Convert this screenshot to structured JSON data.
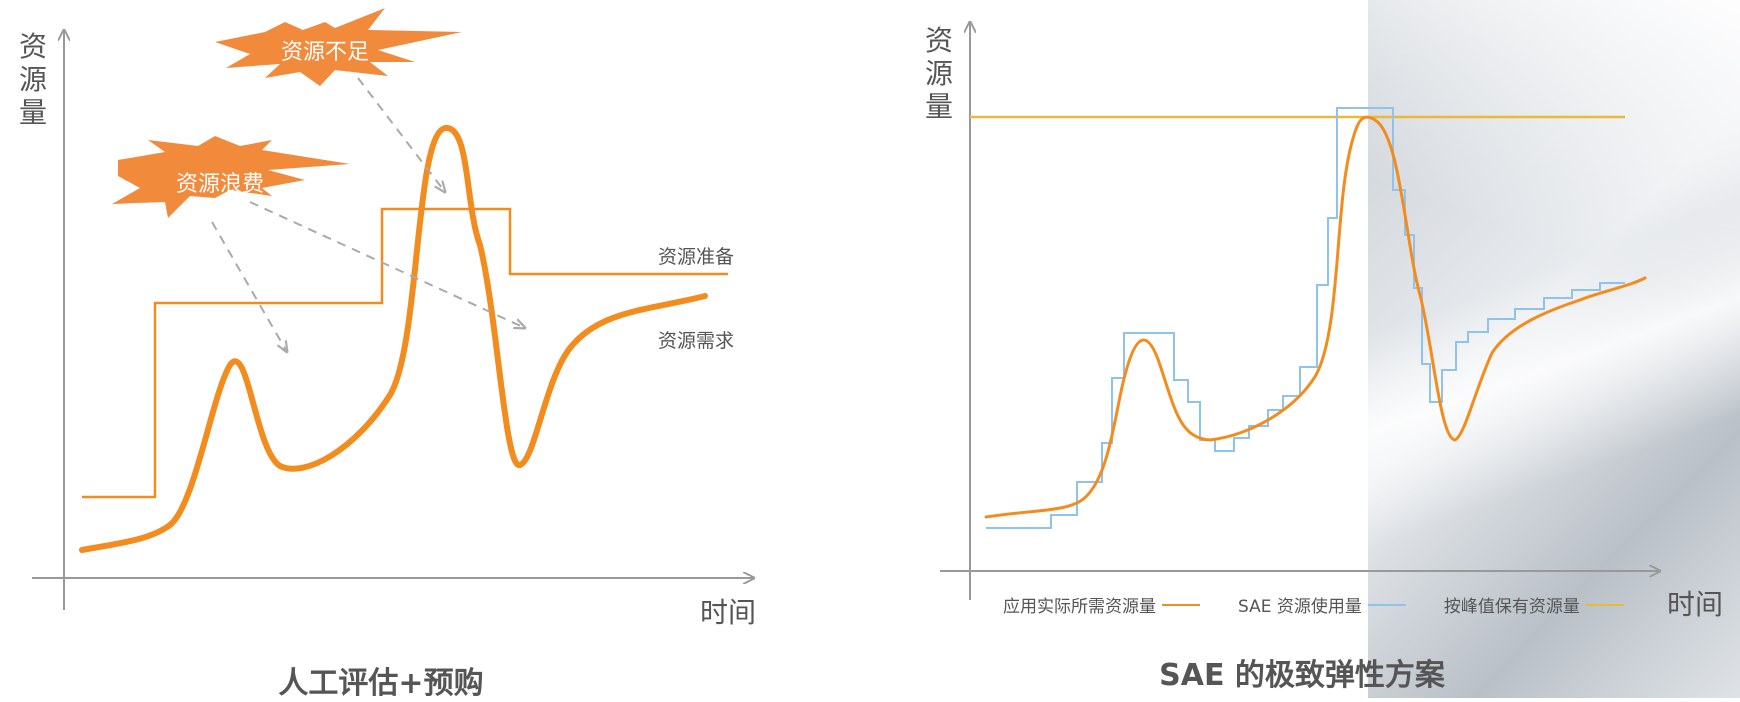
{
  "left_diagram": {
    "y_axis_label": "资源量",
    "x_axis_label": "时间",
    "supply_label": "资源准备",
    "demand_label": "资源需求",
    "callout_shortage": "资源不足",
    "callout_waste": "资源浪费",
    "caption": "人工评估+预购",
    "colors": {
      "accent": "#f28c1e",
      "burst": "#f28a3c",
      "arrow": "#aaaaaa"
    }
  },
  "right_diagram": {
    "y_axis_label": "资源量",
    "x_axis_label": "时间",
    "caption": "SAE 的极致弹性方案",
    "legend": [
      {
        "label": "应用实际所需资源量",
        "color": "#f28c1e"
      },
      {
        "label": "SAE 资源使用量",
        "color": "#8fc3ea"
      },
      {
        "label": "按峰值保有资源量",
        "color": "#e8b93a"
      }
    ]
  }
}
